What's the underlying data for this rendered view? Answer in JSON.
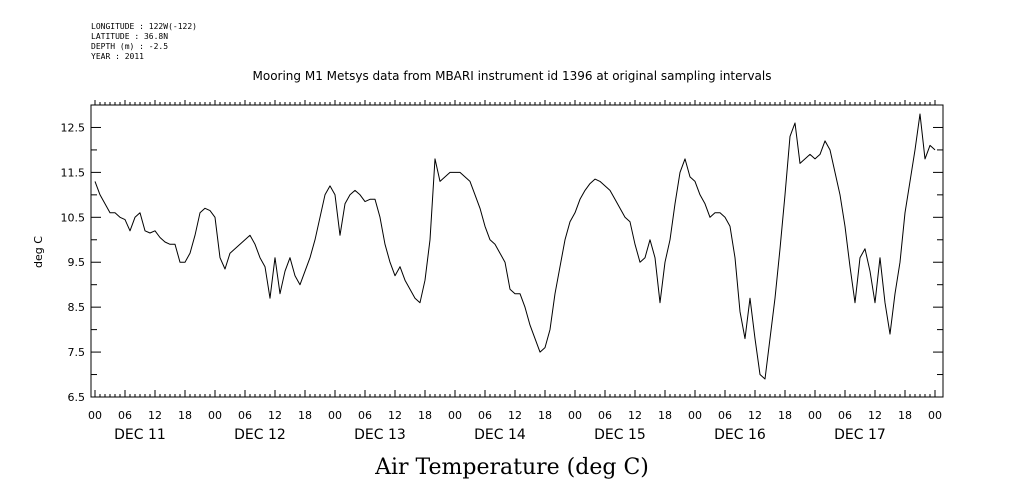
{
  "header": {
    "meta_lines": [
      "LONGITUDE : 122W(-122)",
      "LATITUDE : 36.8N",
      "DEPTH (m) : -2.5",
      "YEAR : 2011"
    ],
    "title": "Mooring M1 Metsys data from MBARI instrument id 1396 at original sampling intervals"
  },
  "footer_title": "Air Temperature (deg C)",
  "chart_data": {
    "type": "line",
    "title": "Mooring M1 Metsys data from MBARI instrument id 1396 at original sampling intervals",
    "xlabel": "",
    "ylabel": "deg C",
    "ylim": [
      6.5,
      13.0
    ],
    "y_ticks": [
      "6.5",
      "7.5",
      "8.5",
      "9.5",
      "10.5",
      "11.5",
      "12.5"
    ],
    "xlim_hours": [
      0,
      168
    ],
    "hour_tick_labels": [
      "00",
      "06",
      "12",
      "18"
    ],
    "day_labels": [
      "DEC 11",
      "DEC 12",
      "DEC 13",
      "DEC 14",
      "DEC 15",
      "DEC 16",
      "DEC 17"
    ],
    "grid": false,
    "x_unit": "hours since DEC 11 00:00",
    "series": [
      {
        "values": [
          [
            0,
            11.3
          ],
          [
            1,
            11.0
          ],
          [
            2,
            10.8
          ],
          [
            3,
            10.6
          ],
          [
            4,
            10.6
          ],
          [
            5,
            10.5
          ],
          [
            6,
            10.45
          ],
          [
            7,
            10.2
          ],
          [
            8,
            10.5
          ],
          [
            9,
            10.6
          ],
          [
            10,
            10.2
          ],
          [
            11,
            10.15
          ],
          [
            12,
            10.2
          ],
          [
            13,
            10.05
          ],
          [
            14,
            9.95
          ],
          [
            15,
            9.9
          ],
          [
            16,
            9.9
          ],
          [
            17,
            9.5
          ],
          [
            18,
            9.5
          ],
          [
            19,
            9.7
          ],
          [
            20,
            10.1
          ],
          [
            21,
            10.6
          ],
          [
            22,
            10.7
          ],
          [
            23,
            10.65
          ],
          [
            24,
            10.5
          ],
          [
            25,
            9.6
          ],
          [
            26,
            9.35
          ],
          [
            27,
            9.7
          ],
          [
            28,
            9.8
          ],
          [
            29,
            9.9
          ],
          [
            30,
            10.0
          ],
          [
            31,
            10.1
          ],
          [
            32,
            9.9
          ],
          [
            33,
            9.6
          ],
          [
            34,
            9.4
          ],
          [
            35,
            8.7
          ],
          [
            36,
            9.6
          ],
          [
            37,
            8.8
          ],
          [
            38,
            9.3
          ],
          [
            39,
            9.6
          ],
          [
            40,
            9.2
          ],
          [
            41,
            9.0
          ],
          [
            42,
            9.3
          ],
          [
            43,
            9.6
          ],
          [
            44,
            10.0
          ],
          [
            45,
            10.5
          ],
          [
            46,
            11.0
          ],
          [
            47,
            11.2
          ],
          [
            48,
            11.0
          ],
          [
            49,
            10.1
          ],
          [
            50,
            10.8
          ],
          [
            51,
            11.0
          ],
          [
            52,
            11.1
          ],
          [
            53,
            11.0
          ],
          [
            54,
            10.85
          ],
          [
            55,
            10.9
          ],
          [
            56,
            10.9
          ],
          [
            57,
            10.5
          ],
          [
            58,
            9.9
          ],
          [
            59,
            9.5
          ],
          [
            60,
            9.2
          ],
          [
            61,
            9.4
          ],
          [
            62,
            9.1
          ],
          [
            63,
            8.9
          ],
          [
            64,
            8.7
          ],
          [
            65,
            8.6
          ],
          [
            66,
            9.1
          ],
          [
            67,
            10.0
          ],
          [
            68,
            11.8
          ],
          [
            69,
            11.3
          ],
          [
            70,
            11.4
          ],
          [
            71,
            11.5
          ],
          [
            72,
            11.5
          ],
          [
            73,
            11.5
          ],
          [
            74,
            11.4
          ],
          [
            75,
            11.3
          ],
          [
            76,
            11.0
          ],
          [
            77,
            10.7
          ],
          [
            78,
            10.3
          ],
          [
            79,
            10.0
          ],
          [
            80,
            9.9
          ],
          [
            81,
            9.7
          ],
          [
            82,
            9.5
          ],
          [
            83,
            8.9
          ],
          [
            84,
            8.8
          ],
          [
            85,
            8.8
          ],
          [
            86,
            8.5
          ],
          [
            87,
            8.1
          ],
          [
            88,
            7.8
          ],
          [
            89,
            7.5
          ],
          [
            90,
            7.6
          ],
          [
            91,
            8.0
          ],
          [
            92,
            8.8
          ],
          [
            93,
            9.4
          ],
          [
            94,
            10.0
          ],
          [
            95,
            10.4
          ],
          [
            96,
            10.6
          ],
          [
            97,
            10.9
          ],
          [
            98,
            11.1
          ],
          [
            99,
            11.25
          ],
          [
            100,
            11.35
          ],
          [
            101,
            11.3
          ],
          [
            102,
            11.2
          ],
          [
            103,
            11.1
          ],
          [
            104,
            10.9
          ],
          [
            105,
            10.7
          ],
          [
            106,
            10.5
          ],
          [
            107,
            10.4
          ],
          [
            108,
            9.9
          ],
          [
            109,
            9.5
          ],
          [
            110,
            9.6
          ],
          [
            111,
            10.0
          ],
          [
            112,
            9.6
          ],
          [
            113,
            8.6
          ],
          [
            114,
            9.5
          ],
          [
            115,
            10.0
          ],
          [
            116,
            10.8
          ],
          [
            117,
            11.5
          ],
          [
            118,
            11.8
          ],
          [
            119,
            11.4
          ],
          [
            120,
            11.3
          ],
          [
            121,
            11.0
          ],
          [
            122,
            10.8
          ],
          [
            123,
            10.5
          ],
          [
            124,
            10.6
          ],
          [
            125,
            10.6
          ],
          [
            126,
            10.5
          ],
          [
            127,
            10.3
          ],
          [
            128,
            9.6
          ],
          [
            129,
            8.4
          ],
          [
            130,
            7.8
          ],
          [
            131,
            8.7
          ],
          [
            132,
            7.8
          ],
          [
            133,
            7.0
          ],
          [
            134,
            6.9
          ],
          [
            135,
            7.8
          ],
          [
            136,
            8.7
          ],
          [
            137,
            9.8
          ],
          [
            138,
            11.0
          ],
          [
            139,
            12.3
          ],
          [
            140,
            12.6
          ],
          [
            141,
            11.7
          ],
          [
            142,
            11.8
          ],
          [
            143,
            11.9
          ],
          [
            144,
            11.8
          ],
          [
            145,
            11.9
          ],
          [
            146,
            12.2
          ],
          [
            147,
            12.0
          ],
          [
            148,
            11.5
          ],
          [
            149,
            11.0
          ],
          [
            150,
            10.3
          ],
          [
            151,
            9.4
          ],
          [
            152,
            8.6
          ],
          [
            153,
            9.6
          ],
          [
            154,
            9.8
          ],
          [
            155,
            9.3
          ],
          [
            156,
            8.6
          ],
          [
            157,
            9.6
          ],
          [
            158,
            8.6
          ],
          [
            159,
            7.9
          ],
          [
            160,
            8.8
          ],
          [
            161,
            9.5
          ],
          [
            162,
            10.6
          ],
          [
            163,
            11.3
          ],
          [
            164,
            12.0
          ],
          [
            165,
            12.8
          ],
          [
            166,
            11.8
          ],
          [
            167,
            12.1
          ],
          [
            168,
            12.0
          ]
        ]
      }
    ]
  }
}
